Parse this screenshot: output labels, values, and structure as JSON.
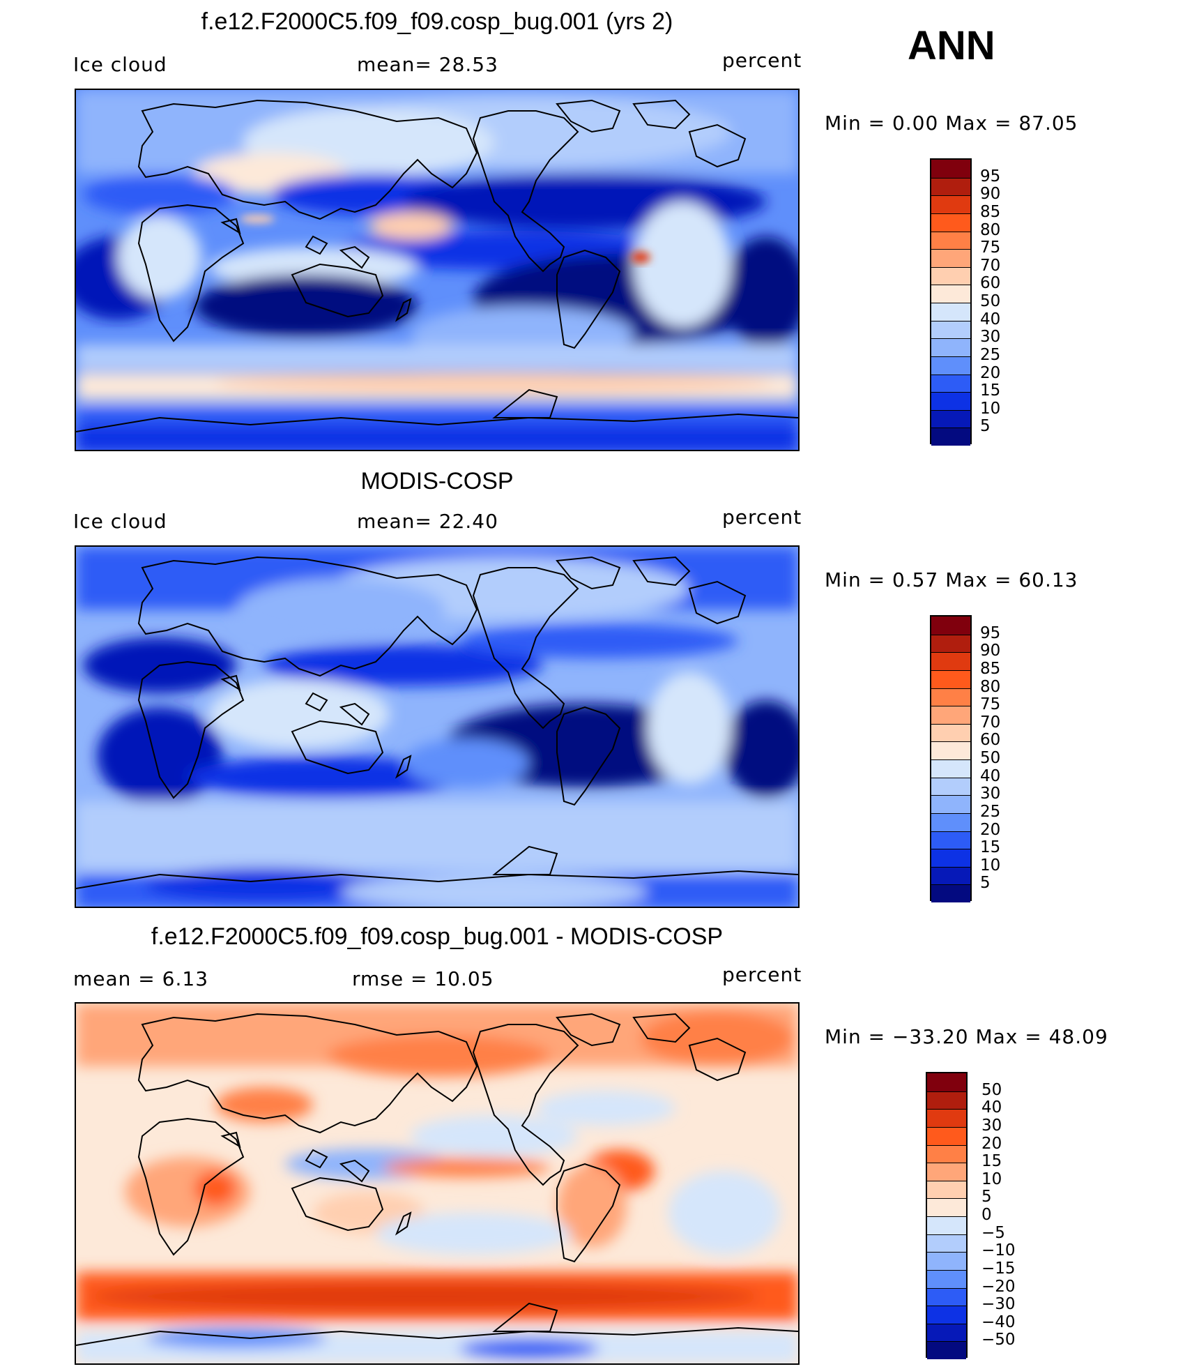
{
  "page_title": "f.e12.F2000C5.f09_f09.cosp_bug.001 (yrs 2)",
  "season": "ANN",
  "panels": [
    {
      "id": "model",
      "title": "f.e12.F2000C5.f09_f09.cosp_bug.001 (yrs 2)",
      "left_label": "Ice cloud",
      "center_label": "mean=   28.53",
      "right_label": "percent",
      "minmax": "Min  =     0.00  Max  =    87.05",
      "colorbar": {
        "colors": [
          "#80000d",
          "#b01e0e",
          "#e03a10",
          "#ff5a1c",
          "#ff8046",
          "#ffa679",
          "#ffcfb0",
          "#fde9d9",
          "#d5e6fb",
          "#b2cdfc",
          "#8fb4fc",
          "#5f8ffb",
          "#2d5cf6",
          "#0d32e5",
          "#0619b8",
          "#030a80"
        ],
        "ticks": [
          "95",
          "90",
          "85",
          "80",
          "75",
          "70",
          "60",
          "50",
          "40",
          "30",
          "25",
          "20",
          "15",
          "10",
          "5"
        ]
      }
    },
    {
      "id": "obs",
      "title": "MODIS-COSP",
      "left_label": "Ice cloud",
      "center_label": "mean=   22.40",
      "right_label": "percent",
      "minmax": "Min  =     0.57  Max  =    60.13",
      "colorbar": {
        "colors": [
          "#80000d",
          "#b01e0e",
          "#e03a10",
          "#ff5a1c",
          "#ff8046",
          "#ffa679",
          "#ffcfb0",
          "#fde9d9",
          "#d5e6fb",
          "#b2cdfc",
          "#8fb4fc",
          "#5f8ffb",
          "#2d5cf6",
          "#0d32e5",
          "#0619b8",
          "#030a80"
        ],
        "ticks": [
          "95",
          "90",
          "85",
          "80",
          "75",
          "70",
          "60",
          "50",
          "40",
          "30",
          "25",
          "20",
          "15",
          "10",
          "5"
        ]
      }
    },
    {
      "id": "diff",
      "title": "f.e12.F2000C5.f09_f09.cosp_bug.001 - MODIS-COSP",
      "left_label": "mean  =     6.13",
      "center_label": "rmse  =    10.05",
      "right_label": "percent",
      "minmax": "Min  = −33.20  Max  =    48.09",
      "colorbar": {
        "colors": [
          "#80000d",
          "#b01e0e",
          "#e03a10",
          "#ff5a1c",
          "#ff8046",
          "#ffa679",
          "#ffcfb0",
          "#fde9d9",
          "#d5e6fb",
          "#b2cdfc",
          "#8fb4fc",
          "#5f8ffb",
          "#2d5cf6",
          "#0d32e5",
          "#0619b8",
          "#030a80"
        ],
        "ticks": [
          "50",
          "40",
          "30",
          "20",
          "15",
          "10",
          "5",
          "0",
          "−5",
          "−10",
          "−15",
          "−20",
          "−30",
          "−40",
          "−50"
        ]
      }
    }
  ],
  "colors": {
    "ocean_dark": "#030a80",
    "mid_blue": "#2d5cf6",
    "light_blue": "#b2cdfc",
    "pale": "#fde9d9",
    "orange": "#ff8046",
    "red": "#e03a10"
  }
}
